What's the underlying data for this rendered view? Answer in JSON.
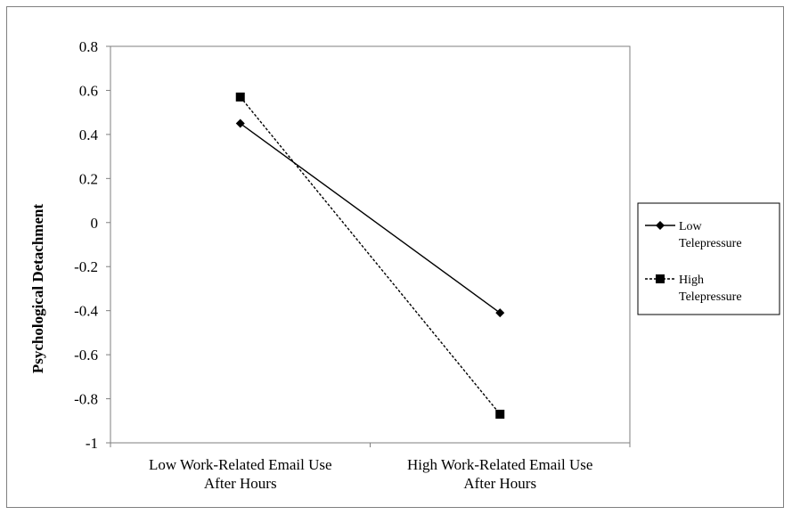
{
  "chart_data": {
    "type": "line",
    "title": "",
    "ylabel": "Psychological Detachment",
    "xlabel": "",
    "ylim": [
      -1,
      0.8
    ],
    "y_ticks": [
      0.8,
      0.6,
      0.4,
      0.2,
      0,
      -0.2,
      -0.4,
      -0.6,
      -0.8,
      -1
    ],
    "y_tick_labels": [
      "0.8",
      "0.6",
      "0.4",
      "0.2",
      "0",
      "-0.2",
      "-0.4",
      "-0.6",
      "-0.8",
      "-1"
    ],
    "categories": [
      [
        "Low Work-Related Email Use",
        "After Hours"
      ],
      [
        "High Work-Related Email Use",
        "After Hours"
      ]
    ],
    "series": [
      {
        "name": [
          "Low",
          "Telepressure"
        ],
        "values": [
          0.45,
          -0.41
        ],
        "marker": "diamond",
        "line": "solid",
        "color": "#000000"
      },
      {
        "name": [
          "High",
          "Telepressure"
        ],
        "values": [
          0.57,
          -0.87
        ],
        "marker": "square",
        "line": "dashed",
        "color": "#000000"
      }
    ],
    "grid": false,
    "legend_position": "right"
  }
}
